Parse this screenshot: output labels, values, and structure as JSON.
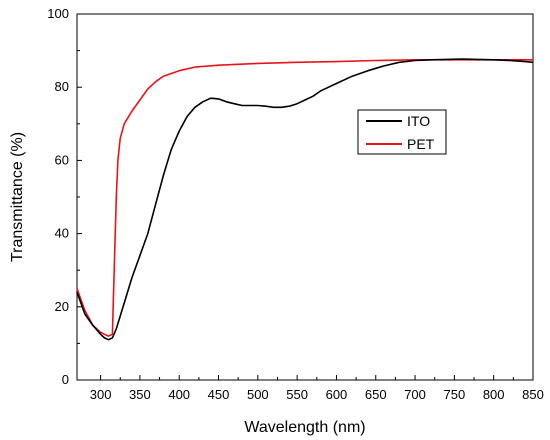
{
  "chart_data": {
    "type": "line",
    "xlabel": "Wavelength (nm)",
    "ylabel": "Transmittance (%)",
    "xlim": [
      270,
      850
    ],
    "ylim": [
      0,
      100
    ],
    "x_ticks": [
      300,
      350,
      400,
      450,
      500,
      550,
      600,
      650,
      700,
      750,
      800,
      850
    ],
    "y_ticks": [
      0,
      20,
      40,
      60,
      80,
      100
    ],
    "grid": false,
    "legend": {
      "position": "center-right"
    },
    "series": [
      {
        "name": "ITO",
        "color": "#000000",
        "x": [
          270,
          280,
          290,
          300,
          305,
          310,
          315,
          320,
          330,
          340,
          350,
          360,
          370,
          380,
          390,
          400,
          410,
          420,
          430,
          440,
          450,
          460,
          470,
          480,
          490,
          500,
          510,
          520,
          530,
          540,
          550,
          560,
          570,
          580,
          590,
          600,
          620,
          640,
          660,
          680,
          700,
          720,
          740,
          760,
          780,
          800,
          820,
          840,
          850
        ],
        "y": [
          24,
          18,
          15,
          12.5,
          11.5,
          11,
          11.5,
          14,
          21,
          28,
          34,
          40,
          48,
          56,
          63,
          68,
          72,
          74.5,
          76,
          77,
          76.8,
          76,
          75.5,
          75,
          75,
          75,
          74.8,
          74.5,
          74.5,
          74.8,
          75.5,
          76.5,
          77.5,
          79,
          80,
          81,
          83,
          84.5,
          85.8,
          86.8,
          87.3,
          87.5,
          87.6,
          87.7,
          87.6,
          87.5,
          87.3,
          87.0,
          86.8
        ]
      },
      {
        "name": "PET",
        "color": "#e8141b",
        "x": [
          270,
          280,
          290,
          300,
          305,
          310,
          315,
          318,
          320,
          322,
          325,
          330,
          340,
          350,
          360,
          370,
          380,
          400,
          420,
          450,
          500,
          550,
          600,
          650,
          700,
          750,
          800,
          850
        ],
        "y": [
          25,
          19,
          15,
          13,
          12.5,
          12,
          12.5,
          35,
          50,
          60,
          66,
          70,
          73.5,
          76.5,
          79.5,
          81.5,
          83,
          84.5,
          85.5,
          86,
          86.5,
          86.8,
          87,
          87.3,
          87.5,
          87.5,
          87.5,
          87.5
        ]
      }
    ]
  }
}
